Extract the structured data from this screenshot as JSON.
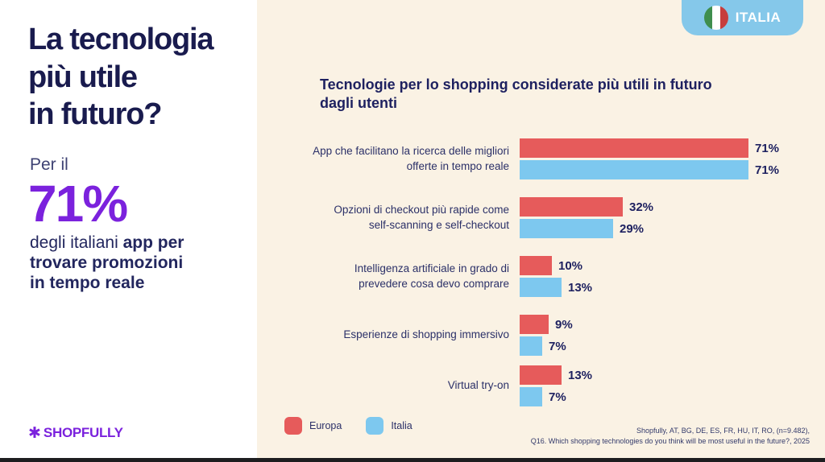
{
  "left_panel": {
    "headline": "La tecnologia\npiù utile\nin futuro?",
    "stat_intro": "Per il",
    "stat_value": "71%",
    "stat_desc_regular": "degli italiani ",
    "stat_desc_bold": "app per\ntrovare promozioni\nin tempo reale",
    "logo_star": "✱",
    "logo_text": "SHOPFULLY"
  },
  "badge": {
    "label": "ITALIA",
    "flag_colors": [
      "#3f8e4e",
      "#ffffff",
      "#c63d3d"
    ]
  },
  "chart_data": {
    "type": "bar",
    "orientation": "horizontal",
    "title": "Tecnologie per lo shopping considerate  più utili in futuro\ndagli utenti",
    "categories": [
      "App che facilitano la ricerca delle migliori\nofferte in tempo reale",
      "Opzioni di checkout più rapide come\nself-scanning e self-checkout",
      "Intelligenza artificiale in grado di\nprevedere cosa devo comprare",
      "Esperienze di shopping immersivo",
      "Virtual try-on"
    ],
    "series": [
      {
        "name": "Europa",
        "color": "#e65b5b",
        "values": [
          71,
          32,
          10,
          9,
          13
        ]
      },
      {
        "name": "Italia",
        "color": "#7dc8ef",
        "values": [
          71,
          29,
          13,
          7,
          7
        ]
      }
    ],
    "value_suffix": "%",
    "xlim": [
      0,
      100
    ],
    "grid": false,
    "legend_position": "bottom-left"
  },
  "footnote": {
    "line1": "Shopfully, AT, BG, DE, ES, FR, HU, IT, RO, (n=9.482),",
    "line2": "Q16. Which shopping technologies do you think will be most useful in the future?, 2025"
  },
  "colors": {
    "left_bg": "#ffffff",
    "right_bg": "#faf2e4",
    "navy": "#1e2160",
    "purple": "#7b22dd",
    "europa_red": "#e65b5b",
    "italia_blue": "#7dc8ef",
    "badge_blue": "#85c8ea",
    "bottom_strip": "#1d1d1f"
  }
}
